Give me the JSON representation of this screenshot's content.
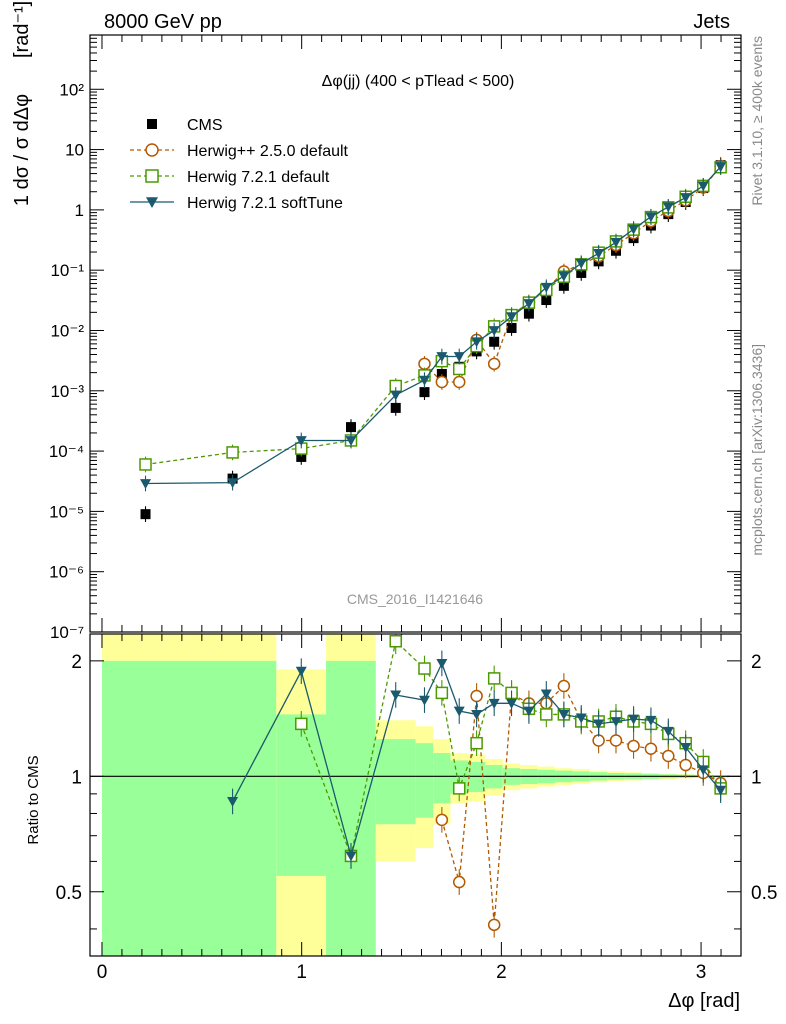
{
  "chart_data": {
    "type": "line",
    "header_left": "8000 GeV pp",
    "header_right": "Jets",
    "title": "Δφ(jj) (400 < pTlead <  500)",
    "ylabel_top_fraction": "1 dσ / σ dΔφ",
    "ylabel_top_unit": "[rad⁻¹]",
    "ylabel_bottom": "Ratio to CMS",
    "xlabel": "Δφ [rad]",
    "watermark": "CMS_2016_I1421646",
    "side_text_1": "Rivet 3.1.10, ≥ 400k events",
    "side_text_2": "mcplots.cern.ch [arXiv:1306.3436]",
    "xlim": [
      -0.06,
      3.2
    ],
    "ylim_top_log10": [
      -7,
      2.9
    ],
    "ylim_ratio": [
      0.34,
      2.35
    ],
    "x_ticks": [
      "0",
      "1",
      "2",
      "3"
    ],
    "y_ticks_top": [
      "10⁻⁷",
      "10⁻⁶",
      "10⁻⁵",
      "10⁻⁴",
      "10⁻³",
      "10⁻²",
      "10⁻¹",
      "1",
      "10",
      "10²"
    ],
    "y_ticks_ratio": [
      "0.5",
      "1",
      "2"
    ],
    "legend": [
      "CMS",
      "Herwig++ 2.5.0 default",
      "Herwig 7.2.1 default",
      "Herwig 7.2.1 softTune"
    ],
    "bin_edges": [
      0,
      0.436,
      0.873,
      1.122,
      1.371,
      1.571,
      1.659,
      1.745,
      1.833,
      1.92,
      2.007,
      2.094,
      2.182,
      2.269,
      2.356,
      2.443,
      2.531,
      2.618,
      2.705,
      2.793,
      2.88,
      2.967,
      3.054,
      3.142
    ],
    "x": [
      0.218,
      0.654,
      0.998,
      1.247,
      1.471,
      1.615,
      1.702,
      1.789,
      1.876,
      1.964,
      2.051,
      2.138,
      2.225,
      2.313,
      2.4,
      2.487,
      2.574,
      2.662,
      2.749,
      2.836,
      2.923,
      3.011,
      3.098
    ],
    "series": [
      {
        "name": "CMS",
        "color": "#000000",
        "marker": "square-filled",
        "values": [
          9e-06,
          3.5e-05,
          8e-05,
          0.00025,
          0.00052,
          0.00095,
          0.0019,
          0.0025,
          0.0045,
          0.0065,
          0.011,
          0.019,
          0.032,
          0.055,
          0.09,
          0.14,
          0.21,
          0.34,
          0.55,
          0.85,
          1.35,
          2.3,
          5.5
        ]
      },
      {
        "name": "Herwig++ 2.5.0 default",
        "color": "#b35900",
        "marker": "circle-open",
        "dash": "4,3",
        "values": [
          null,
          null,
          null,
          null,
          null,
          0.0028,
          0.0014,
          0.0014,
          0.007,
          0.0028,
          0.018,
          0.029,
          0.048,
          0.095,
          0.125,
          0.17,
          0.26,
          0.41,
          0.65,
          0.96,
          1.44,
          2.35,
          5.3
        ]
      },
      {
        "name": "Herwig 7.2.1 default",
        "color": "#4c9900",
        "marker": "square-open",
        "dash": "4,3",
        "values": [
          6e-05,
          9.5e-05,
          0.00011,
          0.00015,
          0.0012,
          0.0018,
          0.0031,
          0.0023,
          0.0055,
          0.0117,
          0.018,
          0.029,
          0.047,
          0.078,
          0.125,
          0.195,
          0.3,
          0.47,
          0.76,
          1.1,
          1.65,
          2.5,
          5.1
        ]
      },
      {
        "name": "Herwig 7.2.1 softTune",
        "color": "#1b5a6e",
        "marker": "triangle-down-filled",
        "values": [
          2.9e-05,
          3e-05,
          0.00015,
          0.00015,
          0.00085,
          0.0015,
          0.0037,
          0.0037,
          0.0065,
          0.01,
          0.017,
          0.028,
          0.052,
          0.08,
          0.13,
          0.19,
          0.29,
          0.48,
          0.77,
          1.12,
          1.6,
          2.5,
          5.2
        ]
      }
    ],
    "ratio": {
      "Herwig++ 2.5.0 default": [
        null,
        null,
        null,
        null,
        null,
        null,
        0.77,
        0.53,
        1.62,
        0.41,
        1.64,
        1.55,
        1.55,
        1.72,
        1.4,
        1.24,
        1.24,
        1.2,
        1.18,
        1.13,
        1.07,
        1.02,
        0.96
      ],
      "Herwig 7.2.1 default": [
        null,
        null,
        1.37,
        0.62,
        2.25,
        1.91,
        1.65,
        0.93,
        1.22,
        1.8,
        1.65,
        1.5,
        1.45,
        1.45,
        1.39,
        1.39,
        1.43,
        1.39,
        1.37,
        1.29,
        1.22,
        1.09,
        0.93
      ],
      "Herwig 7.2.1 softTune": [
        null,
        0.86,
        1.88,
        0.62,
        1.63,
        1.58,
        1.97,
        1.48,
        1.45,
        1.55,
        1.55,
        1.48,
        1.64,
        1.45,
        1.42,
        1.37,
        1.39,
        1.41,
        1.4,
        1.31,
        1.19,
        1.04,
        0.92
      ]
    },
    "uncertainty_bands": {
      "stat_half_width": [
        1.0,
        1.0,
        0.45,
        1.0,
        0.25,
        0.22,
        0.15,
        0.1,
        0.09,
        0.07,
        0.05,
        0.045,
        0.04,
        0.035,
        0.03,
        0.025,
        0.02,
        0.018,
        0.015,
        0.012,
        0.01,
        0.008,
        0.006
      ],
      "total_half_width": [
        1.5,
        1.5,
        0.9,
        1.5,
        0.4,
        0.35,
        0.25,
        0.15,
        0.14,
        0.11,
        0.08,
        0.07,
        0.06,
        0.05,
        0.045,
        0.035,
        0.03,
        0.025,
        0.02,
        0.016,
        0.013,
        0.01,
        0.008
      ],
      "stat_color": "#99ff99",
      "total_color": "#ffff99"
    }
  }
}
